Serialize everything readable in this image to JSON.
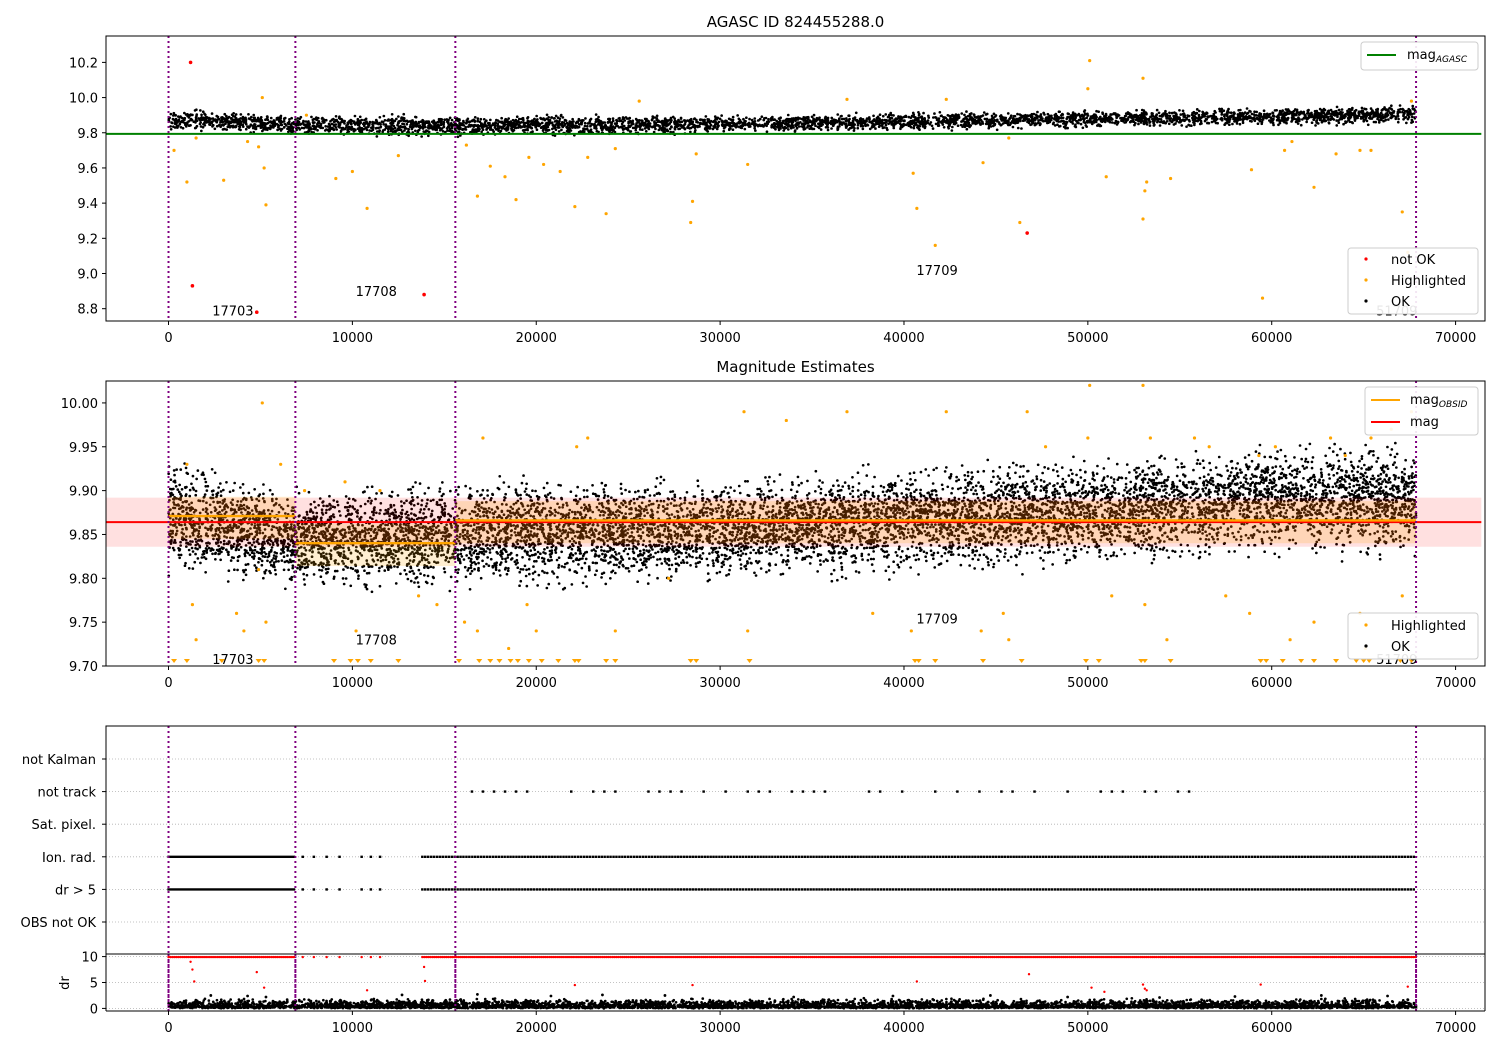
{
  "chart_data": [
    {
      "type": "scatter",
      "title": "AGASC ID 824455288.0",
      "xlabel": "",
      "ylabel": "",
      "xlim": [
        -3400,
        71600
      ],
      "ylim": [
        8.73,
        10.35
      ],
      "xticks": [
        0,
        10000,
        20000,
        30000,
        40000,
        50000,
        60000,
        70000
      ],
      "yticks": [
        "8.8",
        "9.0",
        "9.2",
        "9.4",
        "9.6",
        "9.8",
        "10.0",
        "10.2"
      ],
      "legend_upper": {
        "position": "top-right",
        "entries": [
          {
            "label": "mag",
            "sub": "AGASC",
            "color": "#008000"
          }
        ]
      },
      "legend_lower": {
        "position": "bottom-right",
        "entries": [
          {
            "label": "not OK",
            "color": "#ff0000"
          },
          {
            "label": "Highlighted",
            "color": "#ffa500"
          },
          {
            "label": "OK",
            "color": "#000000"
          }
        ]
      },
      "mag_agasc": 9.794,
      "obs_boundaries": [
        0,
        6900,
        15600,
        67850
      ],
      "obs_labels": [
        {
          "text": "17703",
          "x": 3500,
          "y": 8.79
        },
        {
          "text": "17708",
          "x": 11300,
          "y": 8.9
        },
        {
          "text": "17709",
          "x": 41800,
          "y": 9.02
        },
        {
          "text": "51709",
          "x": 66800,
          "y": 8.79
        }
      ],
      "ok_band": [
        {
          "x": 0,
          "low": 9.83,
          "high": 9.92
        },
        {
          "x": 6900,
          "low": 9.8,
          "high": 9.89
        },
        {
          "x": 15600,
          "low": 9.79,
          "high": 9.89
        },
        {
          "x": 30000,
          "low": 9.81,
          "high": 9.89
        },
        {
          "x": 45000,
          "low": 9.83,
          "high": 9.91
        },
        {
          "x": 60000,
          "low": 9.85,
          "high": 9.93
        },
        {
          "x": 67850,
          "low": 9.86,
          "high": 9.95
        }
      ],
      "not_ok_points": [
        [
          1200,
          10.2
        ],
        [
          1300,
          8.93
        ],
        [
          4800,
          8.78
        ],
        [
          13900,
          8.88
        ],
        [
          46700,
          9.23
        ]
      ],
      "highlighted_points": [
        [
          300,
          9.7
        ],
        [
          1000,
          9.52
        ],
        [
          1500,
          9.77
        ],
        [
          3000,
          9.53
        ],
        [
          4300,
          9.75
        ],
        [
          4900,
          9.72
        ],
        [
          5200,
          9.6
        ],
        [
          5300,
          9.39
        ],
        [
          5100,
          10.0
        ],
        [
          7500,
          9.9
        ],
        [
          9100,
          9.54
        ],
        [
          10000,
          9.58
        ],
        [
          10800,
          9.37
        ],
        [
          12500,
          9.67
        ],
        [
          16200,
          9.73
        ],
        [
          16800,
          9.44
        ],
        [
          17500,
          9.61
        ],
        [
          18300,
          9.55
        ],
        [
          18900,
          9.42
        ],
        [
          19600,
          9.66
        ],
        [
          20400,
          9.62
        ],
        [
          21300,
          9.58
        ],
        [
          22100,
          9.38
        ],
        [
          22800,
          9.66
        ],
        [
          23800,
          9.34
        ],
        [
          24300,
          9.71
        ],
        [
          25600,
          9.98
        ],
        [
          28400,
          9.29
        ],
        [
          28700,
          9.68
        ],
        [
          28500,
          9.41
        ],
        [
          31500,
          9.62
        ],
        [
          36900,
          9.99
        ],
        [
          40500,
          9.57
        ],
        [
          40700,
          9.37
        ],
        [
          41700,
          9.16
        ],
        [
          42300,
          9.99
        ],
        [
          44300,
          9.63
        ],
        [
          45700,
          9.77
        ],
        [
          46300,
          9.29
        ],
        [
          50000,
          10.05
        ],
        [
          50100,
          10.21
        ],
        [
          51000,
          9.55
        ],
        [
          53000,
          10.11
        ],
        [
          53100,
          9.47
        ],
        [
          53000,
          9.31
        ],
        [
          53200,
          9.52
        ],
        [
          54500,
          9.54
        ],
        [
          58900,
          9.59
        ],
        [
          59500,
          8.86
        ],
        [
          60700,
          9.7
        ],
        [
          62300,
          9.49
        ],
        [
          61100,
          9.75
        ],
        [
          63500,
          9.68
        ],
        [
          64800,
          9.7
        ],
        [
          65400,
          9.7
        ],
        [
          67100,
          9.35
        ],
        [
          67400,
          9.12
        ],
        [
          67600,
          9.98
        ]
      ]
    },
    {
      "type": "scatter",
      "title": "Magnitude Estimates",
      "xlabel": "",
      "ylabel": "",
      "xlim": [
        -3400,
        71600
      ],
      "ylim": [
        9.7,
        10.025
      ],
      "xticks": [
        0,
        10000,
        20000,
        30000,
        40000,
        50000,
        60000,
        70000
      ],
      "yticks": [
        "9.70",
        "9.75",
        "9.80",
        "9.85",
        "9.90",
        "9.95",
        "10.00"
      ],
      "legend_upper": {
        "position": "top-right",
        "entries": [
          {
            "label": "mag",
            "sub": "OBSID",
            "color": "#ffa500"
          },
          {
            "label": "mag",
            "sub": "",
            "color": "#ff0000"
          }
        ]
      },
      "legend_lower": {
        "position": "bottom-right",
        "entries": [
          {
            "label": "Highlighted",
            "color": "#ffa500"
          },
          {
            "label": "OK",
            "color": "#000000"
          }
        ]
      },
      "mag": 9.864,
      "mag_band": [
        9.836,
        9.892
      ],
      "mag_obsid": [
        {
          "x0": 0,
          "x1": 6900,
          "value": 9.871
        },
        {
          "x0": 6900,
          "x1": 15600,
          "value": 9.84
        },
        {
          "x0": 15600,
          "x1": 67850,
          "value": 9.866
        }
      ],
      "obs_boundaries": [
        0,
        6900,
        15600,
        67850
      ],
      "obs_labels": [
        {
          "text": "17703",
          "x": 3500,
          "y": 9.708
        },
        {
          "text": "17708",
          "x": 11300,
          "y": 9.73
        },
        {
          "text": "17709",
          "x": 41800,
          "y": 9.754
        },
        {
          "text": "51709",
          "x": 66800,
          "y": 9.708
        }
      ],
      "ok_band": [
        {
          "x": 0,
          "low": 9.82,
          "high": 9.92
        },
        {
          "x": 6900,
          "low": 9.8,
          "high": 9.89
        },
        {
          "x": 15600,
          "low": 9.8,
          "high": 9.9
        },
        {
          "x": 30000,
          "low": 9.81,
          "high": 9.9
        },
        {
          "x": 45000,
          "low": 9.82,
          "high": 9.92
        },
        {
          "x": 60000,
          "low": 9.84,
          "high": 9.94
        },
        {
          "x": 67850,
          "low": 9.84,
          "high": 9.94
        }
      ],
      "highlighted_points": [
        [
          1000,
          9.93
        ],
        [
          1300,
          9.77
        ],
        [
          1500,
          9.73
        ],
        [
          3700,
          9.76
        ],
        [
          4100,
          9.74
        ],
        [
          4900,
          9.81
        ],
        [
          5100,
          10.0
        ],
        [
          5300,
          9.75
        ],
        [
          6100,
          9.93
        ],
        [
          7400,
          9.9
        ],
        [
          9600,
          9.91
        ],
        [
          10200,
          9.74
        ],
        [
          11500,
          9.9
        ],
        [
          13600,
          9.78
        ],
        [
          14600,
          9.77
        ],
        [
          16100,
          9.75
        ],
        [
          16800,
          9.74
        ],
        [
          17100,
          9.96
        ],
        [
          18500,
          9.72
        ],
        [
          19500,
          9.77
        ],
        [
          20000,
          9.74
        ],
        [
          22200,
          9.95
        ],
        [
          22800,
          9.96
        ],
        [
          24300,
          9.74
        ],
        [
          27200,
          9.8
        ],
        [
          31300,
          9.99
        ],
        [
          31500,
          9.74
        ],
        [
          33600,
          9.98
        ],
        [
          36900,
          9.99
        ],
        [
          38300,
          9.76
        ],
        [
          40400,
          9.74
        ],
        [
          42300,
          9.99
        ],
        [
          44200,
          9.74
        ],
        [
          45400,
          9.76
        ],
        [
          45700,
          9.73
        ],
        [
          46700,
          9.99
        ],
        [
          47700,
          9.95
        ],
        [
          50000,
          9.96
        ],
        [
          50100,
          10.02
        ],
        [
          51300,
          9.78
        ],
        [
          53000,
          10.02
        ],
        [
          53100,
          9.77
        ],
        [
          53400,
          9.96
        ],
        [
          54300,
          9.73
        ],
        [
          55800,
          9.96
        ],
        [
          56600,
          9.95
        ],
        [
          57500,
          9.78
        ],
        [
          58800,
          9.76
        ],
        [
          59300,
          9.94
        ],
        [
          60200,
          9.95
        ],
        [
          61000,
          9.73
        ],
        [
          62300,
          9.75
        ],
        [
          63200,
          9.96
        ],
        [
          64000,
          9.94
        ],
        [
          64800,
          9.76
        ],
        [
          65100,
          9.72
        ],
        [
          65400,
          9.96
        ],
        [
          66500,
          9.97
        ],
        [
          67100,
          9.78
        ],
        [
          67600,
          9.99
        ]
      ],
      "clipped_low_markers_x": [
        300,
        1000,
        2900,
        4900,
        5200,
        9000,
        9900,
        10300,
        11000,
        12500,
        15800,
        16900,
        17500,
        18000,
        18600,
        19000,
        19600,
        20300,
        21200,
        22100,
        22300,
        23800,
        24300,
        28400,
        28700,
        31600,
        40600,
        40800,
        41700,
        44300,
        46400,
        49900,
        50600,
        52900,
        53100,
        54500,
        59400,
        59700,
        60600,
        61600,
        62300,
        63500,
        64600,
        65000,
        65300,
        67000,
        67600
      ]
    },
    {
      "type": "scatter",
      "title": "",
      "xlabel": "",
      "ylabel": "",
      "xlim": [
        -3400,
        71600
      ],
      "xticks": [
        0,
        10000,
        20000,
        30000,
        40000,
        50000,
        60000,
        70000
      ],
      "categories": [
        "OBS not OK",
        "dr > 5",
        "Ion. rad.",
        "Sat. pixel.",
        "not track",
        "not Kalman"
      ],
      "obs_boundaries": [
        0,
        6900,
        15600,
        67850
      ],
      "flag_ranges": {
        "dr > 5": [
          [
            0,
            6900
          ],
          [
            13800,
            67850
          ]
        ],
        "Ion. rad.": [
          [
            0,
            6900
          ],
          [
            13800,
            67850
          ]
        ],
        "not track": [
          [
            16500,
            56700
          ]
        ]
      },
      "flag_sparse_x": [
        7300,
        7900,
        8600,
        9300,
        10500,
        11000,
        11500
      ]
    },
    {
      "type": "scatter",
      "title": "",
      "xlabel": "",
      "ylabel": "dr",
      "xlim": [
        -3400,
        71600
      ],
      "ylim": [
        -0.5,
        10.5
      ],
      "xticks": [
        0,
        10000,
        20000,
        30000,
        40000,
        50000,
        60000,
        70000
      ],
      "yticks": [
        "0",
        "5",
        "10"
      ],
      "obs_boundaries": [
        0,
        6900,
        15600,
        67850
      ],
      "red_line_ranges": [
        [
          0,
          6900
        ],
        [
          13800,
          67850
        ]
      ],
      "red_scatter_points": [
        [
          1200,
          9.0
        ],
        [
          1300,
          7.5
        ],
        [
          1400,
          5.2
        ],
        [
          4800,
          7.0
        ],
        [
          5200,
          4.0
        ],
        [
          10800,
          3.5
        ],
        [
          13900,
          8.0
        ],
        [
          13950,
          5.3
        ],
        [
          22100,
          4.5
        ],
        [
          28500,
          4.5
        ],
        [
          40700,
          5.2
        ],
        [
          46800,
          6.6
        ],
        [
          50200,
          4.0
        ],
        [
          50900,
          3.2
        ],
        [
          53000,
          4.6
        ],
        [
          53100,
          3.8
        ],
        [
          53200,
          3.5
        ],
        [
          59400,
          4.6
        ],
        [
          67400,
          4.2
        ]
      ],
      "black_band": [
        0.0,
        1.8
      ],
      "black_outliers": [
        [
          2300,
          2.5
        ],
        [
          4300,
          2.4
        ],
        [
          5300,
          2.2
        ],
        [
          12700,
          2.6
        ],
        [
          16800,
          2.7
        ],
        [
          20800,
          2.4
        ],
        [
          23600,
          2.6
        ],
        [
          27000,
          2.5
        ],
        [
          34000,
          2.2
        ],
        [
          39400,
          2.4
        ],
        [
          44700,
          2.5
        ],
        [
          48900,
          2.2
        ],
        [
          53900,
          2.1
        ],
        [
          58000,
          2.3
        ],
        [
          62700,
          2.5
        ],
        [
          66300,
          2.4
        ]
      ]
    }
  ]
}
